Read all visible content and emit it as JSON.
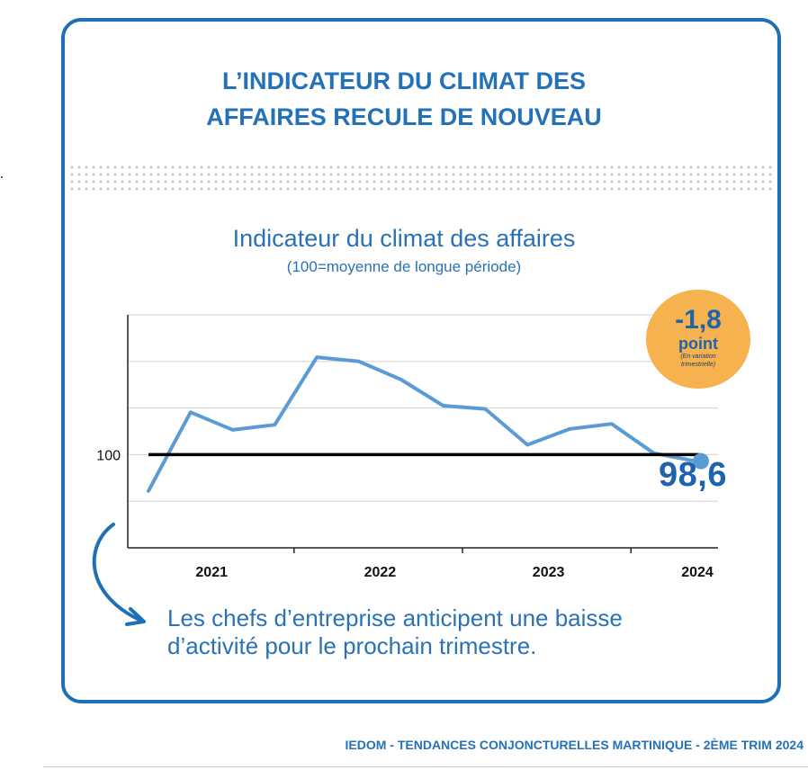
{
  "headline": {
    "line1": "L’INDICATEUR DU CLIMAT DES",
    "line2": "AFFAIRES RECULE DE NOUVEAU"
  },
  "badge": {
    "value": "-1,8",
    "unit": "point",
    "note_line1": "(En variation",
    "note_line2": "trimestrielle)"
  },
  "last_value_label": "98,6",
  "caption": {
    "line1": "Les chefs d’entreprise anticipent une baisse",
    "line2": "d’activité pour le prochain trimestre."
  },
  "footer": "IEDOM - TENDANCES CONJONCTURELLES MARTINIQUE - 2ÈME TRIM 2024",
  "colors": {
    "accent": "#1f6fb5",
    "series_line": "#5b9bd5",
    "reference_line": "#000000",
    "badge_fill": "#f6b24e",
    "grid": "#d9d9d9"
  },
  "icons": [
    "curved-arrow-icon"
  ],
  "chart_data": {
    "type": "line",
    "title": "Indicateur du climat des affaires",
    "subtitle": "(100=moyenne de longue période)",
    "x": [
      "2021-T1",
      "2021-T2",
      "2021-T3",
      "2021-T4",
      "2022-T1",
      "2022-T2",
      "2022-T3",
      "2022-T4",
      "2023-T1",
      "2023-T2",
      "2023-T3",
      "2023-T4",
      "2024-T1",
      "2024-T2"
    ],
    "series": [
      {
        "values": [
          92.2,
          109.1,
          105.3,
          106.4,
          120.9,
          120.0,
          116.1,
          110.5,
          109.8,
          102.1,
          105.5,
          106.6,
          100.3,
          98.6
        ]
      }
    ],
    "year_labels": [
      "2021",
      "2022",
      "2023",
      "2024"
    ],
    "ytick_labels": [
      "100"
    ],
    "reference_line": 100,
    "ylim": [
      80,
      130
    ],
    "grid": "horizontal",
    "last_point_marker": true
  }
}
